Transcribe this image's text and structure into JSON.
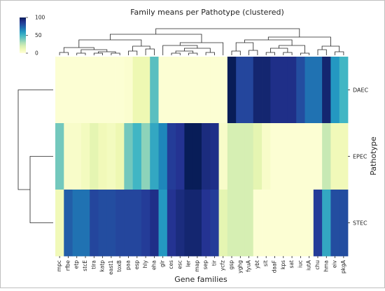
{
  "chart_data": {
    "type": "heatmap",
    "title": "Family means per Pathotype (clustered)",
    "xlabel": "Gene families",
    "ylabel": "Pathotype",
    "rows": [
      "DAEC",
      "EPEC",
      "STEC"
    ],
    "columns": [
      "mpc",
      "rfbe",
      "etp",
      "stcE",
      "tlra",
      "katp",
      "east1",
      "toxB",
      "paa",
      "esp",
      "hly",
      "eha",
      "glr",
      "ces",
      "esc",
      "ler",
      "map",
      "sep",
      "tir",
      "ycfz",
      "gsp",
      "yghg",
      "fyuA",
      "ybt",
      "sit",
      "daaF",
      "kps",
      "sat",
      "iuc",
      "iutA",
      "chu",
      "hma",
      "eiv",
      "pkgA"
    ],
    "values": [
      [
        2,
        2,
        2,
        2,
        2,
        2,
        2,
        2,
        3,
        12,
        12,
        45,
        2,
        2,
        2,
        2,
        2,
        2,
        2,
        2,
        100,
        82,
        82,
        95,
        95,
        90,
        90,
        90,
        80,
        70,
        70,
        95,
        60,
        50
      ],
      [
        40,
        5,
        5,
        8,
        15,
        10,
        8,
        12,
        40,
        50,
        35,
        55,
        65,
        85,
        88,
        100,
        100,
        92,
        90,
        5,
        20,
        20,
        20,
        15,
        5,
        2,
        2,
        2,
        2,
        2,
        2,
        25,
        10,
        10
      ],
      [
        10,
        75,
        70,
        70,
        82,
        80,
        80,
        82,
        82,
        82,
        85,
        90,
        60,
        88,
        92,
        95,
        95,
        88,
        85,
        15,
        20,
        20,
        20,
        2,
        2,
        2,
        2,
        2,
        2,
        2,
        85,
        55,
        80,
        80
      ]
    ],
    "colorbar": {
      "ticks": [
        0,
        50,
        100
      ],
      "range": [
        0,
        100
      ],
      "colormap": "YlGnBu"
    }
  }
}
